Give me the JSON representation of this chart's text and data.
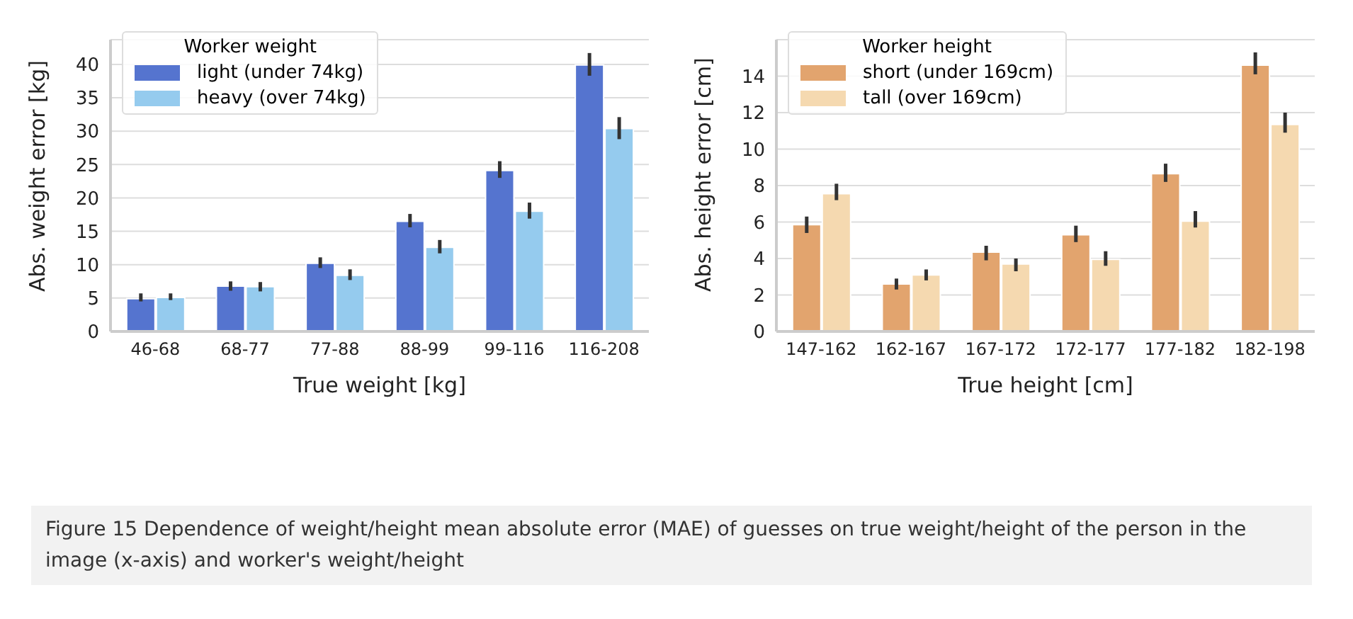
{
  "chart_data": [
    {
      "type": "bar",
      "categories": [
        "46-68",
        "68-77",
        "77-88",
        "88-99",
        "99-116",
        "116-208"
      ],
      "xlabel": "True weight [kg]",
      "ylabel": "Abs. weight error [kg]",
      "legend_title": "Worker weight",
      "legend": "top left",
      "grid": "y",
      "ylim": [
        0,
        43.7
      ],
      "yticks": [
        0,
        5,
        10,
        15,
        20,
        25,
        30,
        35,
        40
      ],
      "series": [
        {
          "name": "light (under 74kg)",
          "color": "#5574cf",
          "values": [
            4.9,
            6.8,
            10.2,
            16.5,
            24.1,
            39.9
          ],
          "errors": [
            [
              4.5,
              5.7
            ],
            [
              6.1,
              7.5
            ],
            [
              9.5,
              11.1
            ],
            [
              15.6,
              17.6
            ],
            [
              23.0,
              25.5
            ],
            [
              38.3,
              41.7
            ]
          ]
        },
        {
          "name": "heavy (over 74kg)",
          "color": "#95cbee",
          "values": [
            5.1,
            6.7,
            8.4,
            12.6,
            18.0,
            30.4
          ],
          "errors": [
            [
              4.7,
              5.7
            ],
            [
              6.0,
              7.4
            ],
            [
              7.7,
              9.3
            ],
            [
              11.7,
              13.7
            ],
            [
              16.9,
              19.3
            ],
            [
              28.8,
              32.1
            ]
          ]
        }
      ],
      "annotations": [
        "Figure 15  Dependence of weight/height mean absolute error (MAE) of guesses on true weight/height of the person in the image (x-axis) and worker's weight/height"
      ]
    },
    {
      "type": "bar",
      "categories": [
        "147-162",
        "162-167",
        "167-172",
        "172-177",
        "177-182",
        "182-198"
      ],
      "xlabel": "True height [cm]",
      "ylabel": "Abs. height error [cm]",
      "legend_title": "Worker height",
      "legend": "top left",
      "grid": "y",
      "ylim": [
        0,
        16
      ],
      "yticks": [
        0,
        2,
        4,
        6,
        8,
        10,
        12,
        14
      ],
      "series": [
        {
          "name": "short (under 169cm)",
          "color": "#e2a46e",
          "values": [
            5.85,
            2.6,
            4.35,
            5.3,
            8.65,
            14.6
          ],
          "errors": [
            [
              5.4,
              6.3
            ],
            [
              2.3,
              2.9
            ],
            [
              3.9,
              4.7
            ],
            [
              4.9,
              5.8
            ],
            [
              8.2,
              9.2
            ],
            [
              14.1,
              15.3
            ]
          ]
        },
        {
          "name": "tall (over 169cm)",
          "color": "#f5d9b0",
          "values": [
            7.55,
            3.1,
            3.7,
            3.95,
            6.05,
            11.35
          ],
          "errors": [
            [
              7.2,
              8.1
            ],
            [
              2.8,
              3.4
            ],
            [
              3.3,
              4.0
            ],
            [
              3.6,
              4.4
            ],
            [
              5.7,
              6.6
            ],
            [
              10.9,
              12.0
            ]
          ]
        }
      ]
    }
  ]
}
